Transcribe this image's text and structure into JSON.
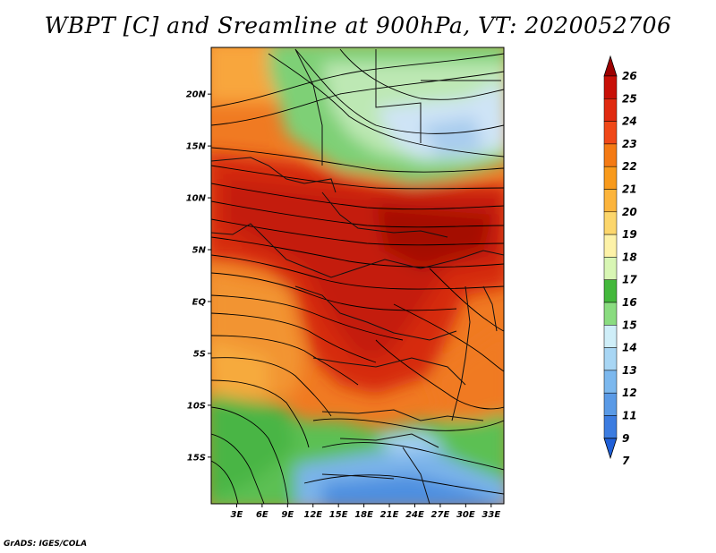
{
  "title": "WBPT [C] and Sreamline at 900hPa, VT: 2020052706",
  "credit": "GrADS: IGES/COLA",
  "map": {
    "lat_labels": [
      "20N",
      "15N",
      "10N",
      "5N",
      "EQ",
      "5S",
      "10S",
      "15S"
    ],
    "lat_values": [
      20,
      15,
      10,
      5,
      0,
      -5,
      -10,
      -15
    ],
    "lon_labels": [
      "3E",
      "6E",
      "9E",
      "12E",
      "15E",
      "18E",
      "21E",
      "24E",
      "27E",
      "30E",
      "33E"
    ],
    "lon_values": [
      3,
      6,
      9,
      12,
      15,
      18,
      21,
      24,
      27,
      30,
      33
    ],
    "lon_range": [
      0,
      34.5
    ],
    "lat_range": [
      -19.5,
      24.5
    ],
    "field": "Wet-bulb potential temperature (WBPT) with streamlines at 900hPa"
  },
  "colorbar": {
    "labels": [
      "26",
      "25",
      "24",
      "23",
      "22",
      "21",
      "20",
      "19",
      "18",
      "17",
      "16",
      "15",
      "14",
      "13",
      "12",
      "11",
      "9",
      "7"
    ],
    "colors": [
      "#9c0000",
      "#c81008",
      "#e02a10",
      "#f04818",
      "#f47a14",
      "#f89a1c",
      "#fcb43c",
      "#fcd66c",
      "#fdf2a8",
      "#d8f6b4",
      "#44b83c",
      "#8adc80",
      "#cfeef8",
      "#a8d6f4",
      "#7cb8ee",
      "#5a9ae6",
      "#3c7ce0",
      "#2060d8"
    ]
  }
}
